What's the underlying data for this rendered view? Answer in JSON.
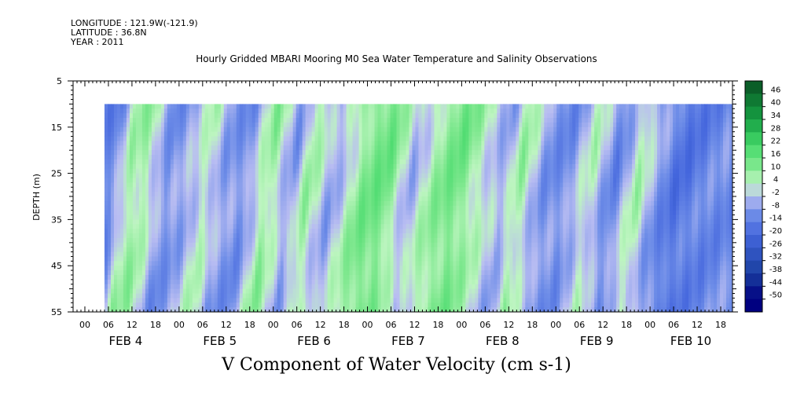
{
  "header": {
    "longitude": "LONGITUDE : 121.9W(-121.9)",
    "latitude": "LATITUDE : 36.8N",
    "year": "YEAR : 2011",
    "title": "Hourly Gridded MBARI Mooring M0 Sea Water Temperature and Salinity Observations"
  },
  "bottom_label": "V Component of Water Velocity (cm s-1)",
  "colors": {
    "negative_strong": "#1a3fa0",
    "negative_mid": "#6f8ee8",
    "neutral_low": "#b9bdf2",
    "neutral_high": "#bdf5c0",
    "positive_mid": "#44d96a",
    "positive_strong": "#0a5a26"
  },
  "chart_data": {
    "type": "heatmap",
    "ylabel": "DEPTH (m)",
    "ylim": [
      5,
      55
    ],
    "y_inverted": true,
    "y_ticks": [
      5,
      15,
      25,
      35,
      45,
      55
    ],
    "data_depth_range": [
      10,
      55
    ],
    "x_hour_labels": [
      "00",
      "06",
      "12",
      "18",
      "00",
      "06",
      "12",
      "18",
      "00",
      "06",
      "12",
      "18",
      "00",
      "06",
      "12",
      "18",
      "00",
      "06",
      "12",
      "18",
      "00",
      "06",
      "12",
      "18",
      "00",
      "06",
      "12",
      "18"
    ],
    "x_day_labels": [
      "FEB  4",
      "FEB  5",
      "FEB  6",
      "FEB  7",
      "FEB  8",
      "FEB  9",
      "FEB 10"
    ],
    "x_range_hours": [
      -3,
      165
    ],
    "data_time_range_hours": [
      5,
      165
    ],
    "colorbar": {
      "levels": [
        -50,
        -44,
        -38,
        -32,
        -26,
        -20,
        -14,
        -8,
        -2,
        4,
        10,
        16,
        22,
        28,
        34,
        40,
        46
      ],
      "min": -50,
      "max": 50
    },
    "v_profile_by_day_hour": [
      {
        "t": 6,
        "v": -12
      },
      {
        "t": 10,
        "v": 6
      },
      {
        "t": 14,
        "v": 8
      },
      {
        "t": 20,
        "v": -10
      },
      {
        "t": 26,
        "v": -4
      },
      {
        "t": 30,
        "v": 5
      },
      {
        "t": 34,
        "v": -6
      },
      {
        "t": 40,
        "v": -10
      },
      {
        "t": 46,
        "v": 10
      },
      {
        "t": 52,
        "v": -8
      },
      {
        "t": 56,
        "v": 8
      },
      {
        "t": 62,
        "v": -6
      },
      {
        "t": 70,
        "v": 12
      },
      {
        "t": 76,
        "v": 14
      },
      {
        "t": 82,
        "v": -4
      },
      {
        "t": 88,
        "v": 8
      },
      {
        "t": 94,
        "v": 14
      },
      {
        "t": 100,
        "v": 4
      },
      {
        "t": 106,
        "v": -6
      },
      {
        "t": 110,
        "v": 8
      },
      {
        "t": 116,
        "v": -8
      },
      {
        "t": 122,
        "v": -10
      },
      {
        "t": 128,
        "v": 4
      },
      {
        "t": 134,
        "v": -12
      },
      {
        "t": 140,
        "v": 6
      },
      {
        "t": 144,
        "v": -6
      },
      {
        "t": 150,
        "v": -16
      },
      {
        "t": 158,
        "v": -12
      },
      {
        "t": 164,
        "v": -10
      }
    ]
  }
}
